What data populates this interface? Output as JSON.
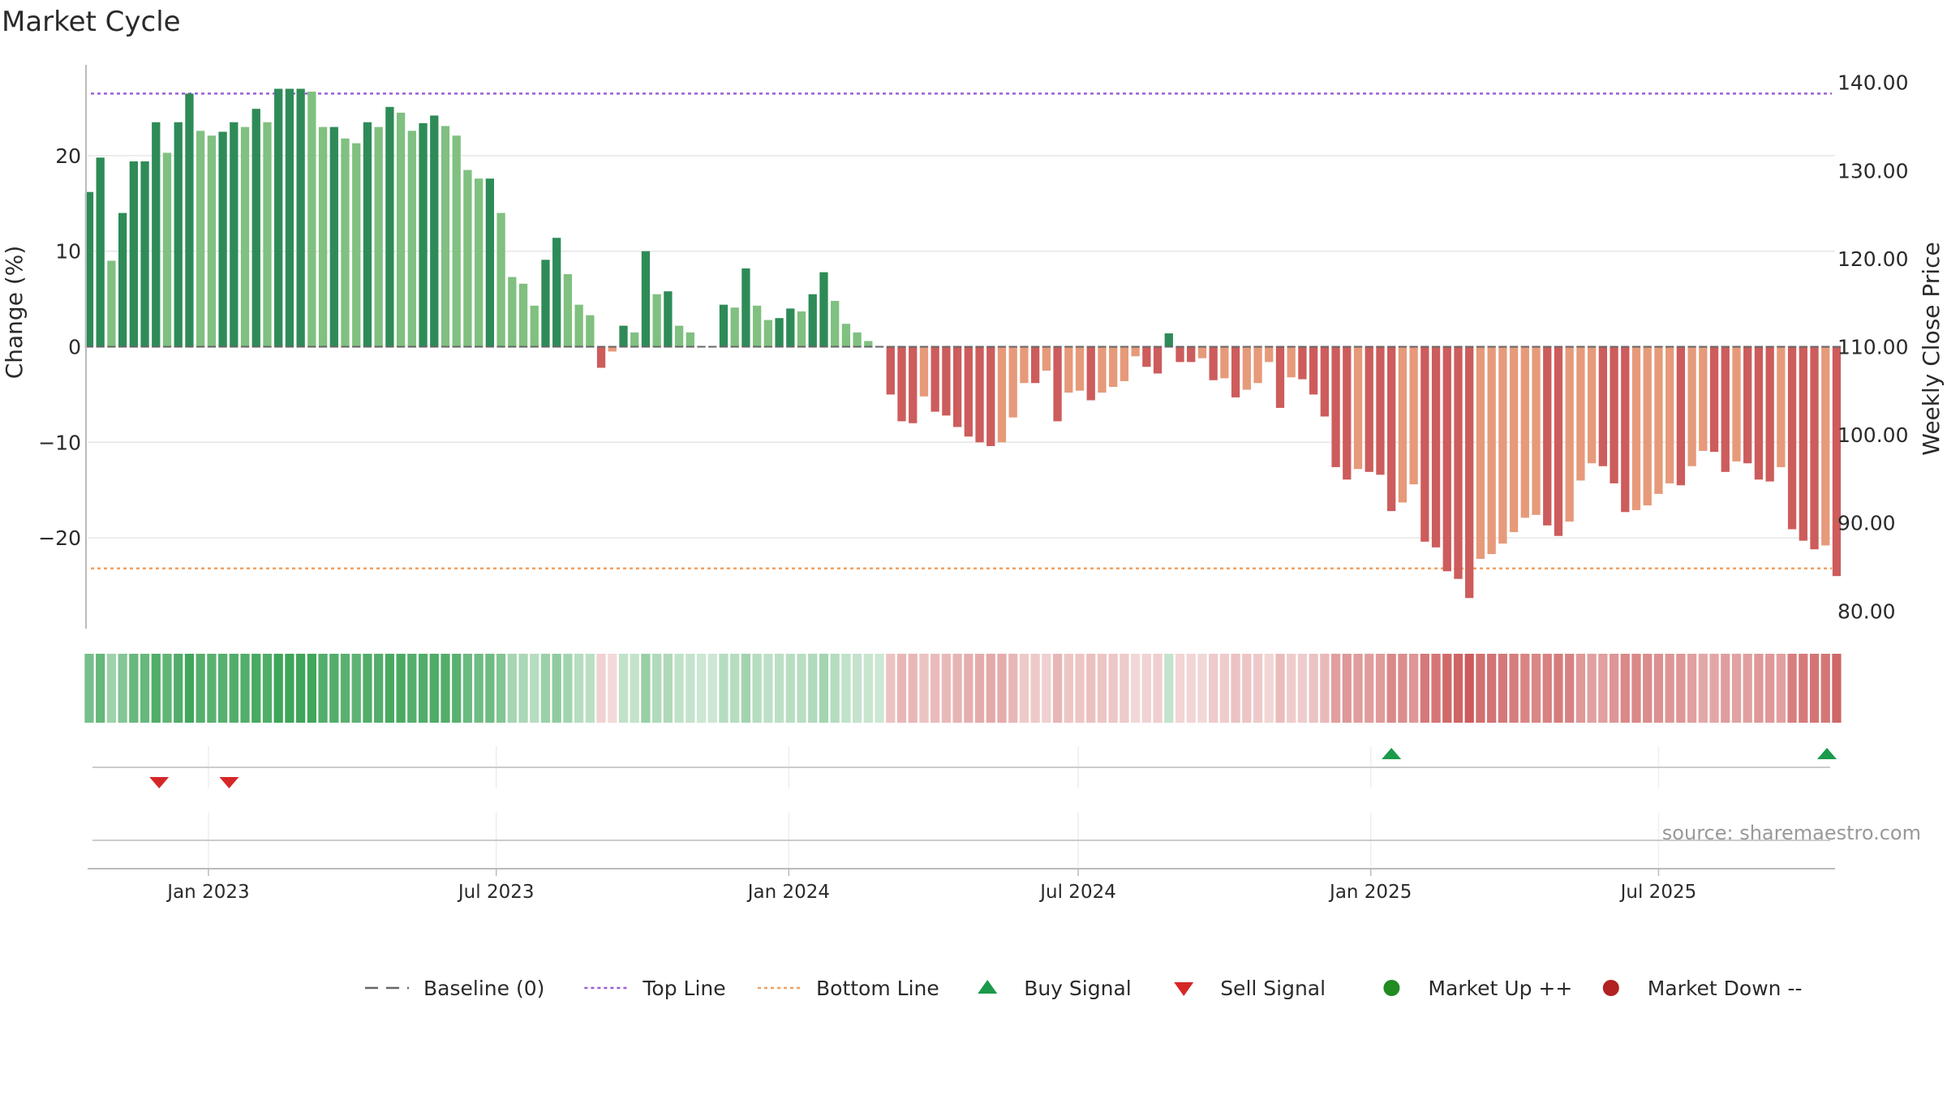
{
  "title": "Market Cycle",
  "source": "source: sharemaestro.com",
  "colors": {
    "up_dark": "#2e8b57",
    "up_light": "#80c080",
    "down_dark": "#cd5c5c",
    "down_light": "#e69a7a",
    "top_line": "#9b5fd6",
    "bottom_line": "#f0a060",
    "baseline": "#666666",
    "buy": "#1a9a4a",
    "sell": "#d62728",
    "market_up": "#228b22",
    "market_down": "#b22222",
    "grid": "#e6e6e6"
  },
  "legend": [
    {
      "label": "Baseline (0)",
      "kind": "dash",
      "color": "#666666"
    },
    {
      "label": "Top Line",
      "kind": "dot",
      "color": "#9b5fd6"
    },
    {
      "label": "Bottom Line",
      "kind": "dot",
      "color": "#f0a060"
    },
    {
      "label": "Buy Signal",
      "kind": "tri-up",
      "color": "#1a9a4a"
    },
    {
      "label": "Sell Signal",
      "kind": "tri-down",
      "color": "#d62728"
    },
    {
      "label": "Market Up ++",
      "kind": "circle",
      "color": "#228b22"
    },
    {
      "label": "Market Down --",
      "kind": "circle",
      "color": "#b22222"
    }
  ],
  "chart_data": {
    "type": "bar",
    "title": "Market Cycle",
    "ylabel": "Change (%)",
    "y2label": "Weekly Close Price",
    "ylim": [
      -29.5,
      29.5
    ],
    "yticks": [
      20,
      10,
      0,
      -10,
      -20
    ],
    "ytick_labels": [
      "20",
      "10",
      "0",
      "−10",
      "−20"
    ],
    "y2lim": [
      78.0,
      142.0
    ],
    "y2ticks": [
      140,
      130,
      120,
      110,
      100,
      90,
      80
    ],
    "y2tick_labels": [
      "140.00",
      "130.00",
      "120.00",
      "110.00",
      "100.00",
      "90.00",
      "80.00"
    ],
    "top_line": 26.5,
    "bottom_line": -23.2,
    "baseline": 0,
    "x_start": "2022-10-17",
    "x_end": "2025-10-20",
    "xticks": [
      {
        "date": "2023-01-01",
        "label": "Jan 2023"
      },
      {
        "date": "2023-07-01",
        "label": "Jul 2023"
      },
      {
        "date": "2024-01-01",
        "label": "Jan 2024"
      },
      {
        "date": "2024-07-01",
        "label": "Jul 2024"
      },
      {
        "date": "2025-01-01",
        "label": "Jan 2025"
      },
      {
        "date": "2025-07-01",
        "label": "Jul 2025"
      }
    ],
    "first_week": "2022-10-18",
    "values": [
      16.2,
      19.8,
      9.0,
      14.0,
      19.4,
      19.4,
      23.5,
      20.3,
      23.5,
      26.5,
      22.6,
      22.1,
      22.5,
      23.5,
      23.0,
      24.9,
      23.5,
      27.0,
      27.0,
      27.0,
      26.7,
      23.0,
      23.0,
      21.8,
      21.3,
      23.5,
      23.0,
      25.1,
      24.5,
      22.6,
      23.4,
      24.2,
      23.1,
      22.1,
      18.5,
      17.6,
      17.6,
      14.0,
      7.3,
      6.6,
      4.3,
      9.1,
      11.4,
      7.6,
      4.4,
      3.3,
      -2.2,
      -0.5,
      2.2,
      1.5,
      10.0,
      5.5,
      5.8,
      2.2,
      1.5,
      0,
      0,
      4.4,
      4.1,
      8.2,
      4.3,
      2.8,
      3.0,
      4.0,
      3.7,
      5.5,
      7.8,
      4.8,
      2.4,
      1.5,
      0.6,
      0,
      -5.0,
      -7.8,
      -8.0,
      -5.2,
      -6.8,
      -7.2,
      -8.4,
      -9.4,
      -10.0,
      -10.4,
      -10.0,
      -7.4,
      -3.8,
      -3.8,
      -2.5,
      -7.8,
      -4.8,
      -4.6,
      -5.6,
      -4.8,
      -4.2,
      -3.6,
      -1.0,
      -2.1,
      -2.8,
      1.4,
      -1.6,
      -1.6,
      -1.2,
      -3.5,
      -3.3,
      -5.3,
      -4.5,
      -3.8,
      -1.6,
      -6.4,
      -3.2,
      -3.4,
      -5.0,
      -7.3,
      -12.6,
      -13.9,
      -12.8,
      -13.1,
      -13.4,
      -17.2,
      -16.3,
      -14.4,
      -20.4,
      -21.0,
      -23.5,
      -24.3,
      -26.3,
      -22.2,
      -21.7,
      -20.6,
      -19.4,
      -17.9,
      -17.6,
      -18.7,
      -19.8,
      -18.3,
      -14.0,
      -12.2,
      -12.5,
      -14.3,
      -17.3,
      -17.1,
      -16.6,
      -15.4,
      -14.3,
      -14.5,
      -12.5,
      -10.9,
      -11.0,
      -13.1,
      -12.0,
      -12.2,
      -13.9,
      -14.1,
      -12.6,
      -19.1,
      -20.3,
      -21.2,
      -20.8,
      -24.0
    ],
    "price": [],
    "signals": {
      "sell": [
        "2022-12-01",
        "2023-01-14"
      ],
      "buy": [
        "2025-01-14",
        "2025-10-17"
      ]
    }
  }
}
